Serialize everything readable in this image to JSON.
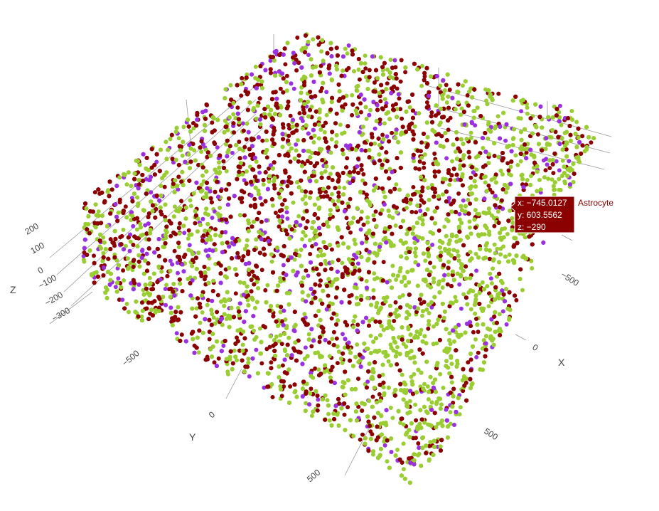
{
  "chart_data": {
    "type": "scatter3d",
    "title": "",
    "axes": {
      "x": {
        "title": "X",
        "ticks": [
          "−500",
          "0",
          "500"
        ]
      },
      "y": {
        "title": "Y",
        "ticks": [
          "−500",
          "0",
          "500"
        ]
      },
      "z": {
        "title": "Z",
        "ticks": [
          "−300",
          "−200",
          "−100",
          "0",
          "100",
          "200"
        ]
      }
    },
    "series": [
      {
        "color": "#9acd32",
        "share": 0.45
      },
      {
        "color": "#8b0000",
        "share": 0.4
      },
      {
        "color": "#9b30e0",
        "share": 0.15
      }
    ],
    "hover": {
      "x_text": "x: −745.0127",
      "y_text": "y: 603.5562",
      "z_text": "z: −290",
      "name": "Astrocyte",
      "color": "#8b0000"
    }
  }
}
